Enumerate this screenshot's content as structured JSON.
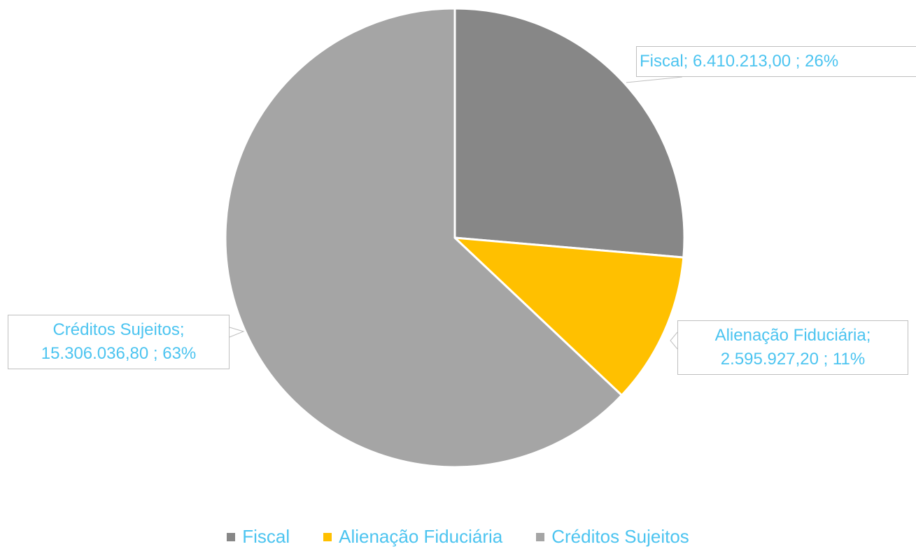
{
  "chart_data": {
    "type": "pie",
    "categories": [
      "Fiscal",
      "Alienação Fiduciária",
      "Créditos Sujeitos"
    ],
    "values": [
      6410213.0,
      2595927.2,
      15306036.8
    ],
    "value_labels": [
      "Fiscal;  6.410.213,00 ; 26%",
      "Alienação Fiduciária; 2.595.927,20 ; 11%",
      "Créditos Sujeitos; 15.306.036,80 ; 63%"
    ],
    "colors": [
      "#878787",
      "#ffc000",
      "#a5a5a5"
    ],
    "legend": "bottom"
  }
}
